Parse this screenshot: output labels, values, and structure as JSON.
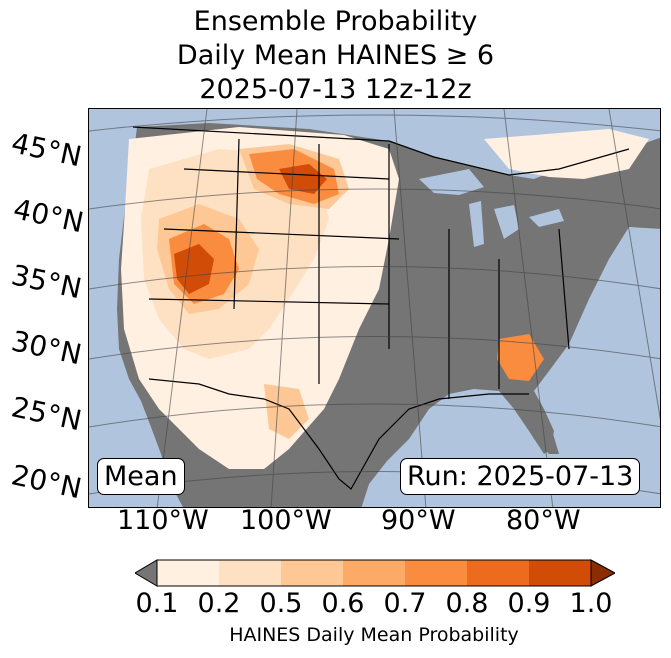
{
  "title": {
    "line1": "Ensemble Probability",
    "line2": "Daily Mean HAINES ≥ 6",
    "line3": "2025-07-13 12z-12z"
  },
  "map": {
    "latitude_labels": [
      "45°N",
      "40°N",
      "35°N",
      "30°N",
      "25°N",
      "20°N"
    ],
    "longitude_labels": [
      "110°W",
      "100°W",
      "90°W",
      "80°W"
    ],
    "ocean_color": "#b0c4de",
    "below_threshold_color": "#757575",
    "mean_label": "Mean",
    "run_label": "Run: 2025-07-13"
  },
  "colorbar": {
    "ticks": [
      "0.1",
      "0.2",
      "0.5",
      "0.6",
      "0.7",
      "0.8",
      "0.9",
      "1.0"
    ],
    "colors": [
      "#fff0e2",
      "#fee0c2",
      "#fdc895",
      "#fcaa66",
      "#f98c3e",
      "#ec6b1e",
      "#d14c07"
    ],
    "under_color": "#757575",
    "over_color": "#8b2d03",
    "label": "HAINES Daily Mean Probability"
  }
}
